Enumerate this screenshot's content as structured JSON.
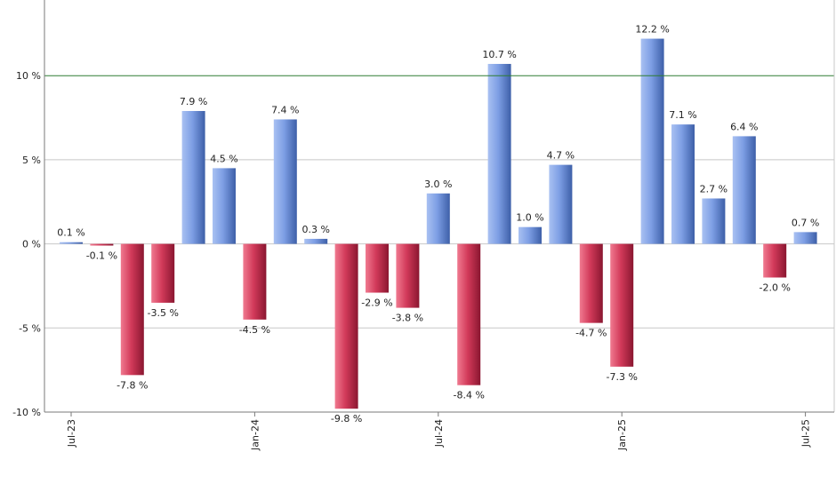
{
  "chart_data": {
    "type": "bar",
    "title": "",
    "xlabel": "",
    "ylabel": "",
    "ylim": [
      -10,
      14.5
    ],
    "grid": true,
    "reference_line": {
      "y": 10,
      "color": "#2e7d32"
    },
    "y_ticks": [
      {
        "value": 10,
        "label": "10 %"
      },
      {
        "value": 5,
        "label": "5 %"
      },
      {
        "value": 0,
        "label": "0 %"
      },
      {
        "value": -5,
        "label": "-5 %"
      },
      {
        "value": -10,
        "label": "-10 %"
      }
    ],
    "x_ticks": [
      {
        "index": 0,
        "label": "Jul-23"
      },
      {
        "index": 6,
        "label": "Jan-24"
      },
      {
        "index": 12,
        "label": "Jul-24"
      },
      {
        "index": 18,
        "label": "Jan-25"
      },
      {
        "index": 24,
        "label": "Jul-25"
      }
    ],
    "values": [
      0.1,
      -0.1,
      -7.8,
      -3.5,
      7.9,
      4.5,
      -4.5,
      7.4,
      0.3,
      -9.8,
      -2.9,
      -3.8,
      3.0,
      -8.4,
      10.7,
      1.0,
      4.7,
      -4.7,
      -7.3,
      12.2,
      7.1,
      2.7,
      6.4,
      -2.0,
      0.7
    ],
    "labels": [
      "0.1 %",
      "-0.1 %",
      "-7.8 %",
      "-3.5 %",
      "7.9 %",
      "4.5 %",
      "-4.5 %",
      "7.4 %",
      "0.3 %",
      "-9.8 %",
      "-2.9 %",
      "-3.8 %",
      "3.0 %",
      "-8.4 %",
      "10.7 %",
      "1.0 %",
      "4.7 %",
      "-4.7 %",
      "-7.3 %",
      "12.2 %",
      "7.1 %",
      "2.7 %",
      "6.4 %",
      "-2.0 %",
      "0.7 %"
    ],
    "colors": {
      "positive": "#6f8fd8",
      "negative": "#c92c4c"
    }
  }
}
